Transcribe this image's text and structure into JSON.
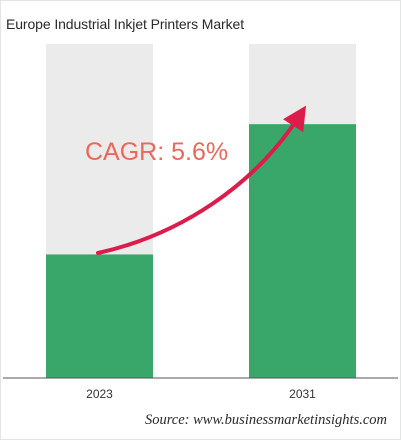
{
  "title": "Europe Industrial Inkjet Printers Market",
  "annotation": "CAGR: 5.6%",
  "source": "Source: www.businessmarketinsights.com",
  "colors": {
    "bar_fill": "#3aa76a",
    "bar_track": "#ecebeb",
    "arrow": "#dc1c4a",
    "annotation": "#e8695a"
  },
  "chart_data": {
    "type": "bar",
    "title": "Europe Industrial Inkjet Printers Market",
    "categories": [
      "2023",
      "2031"
    ],
    "values": [
      37,
      76
    ],
    "value_unit": "percent of bar track height",
    "ylim": [
      0,
      100
    ],
    "grid": false,
    "annotations": [
      "CAGR: 5.6%"
    ]
  }
}
